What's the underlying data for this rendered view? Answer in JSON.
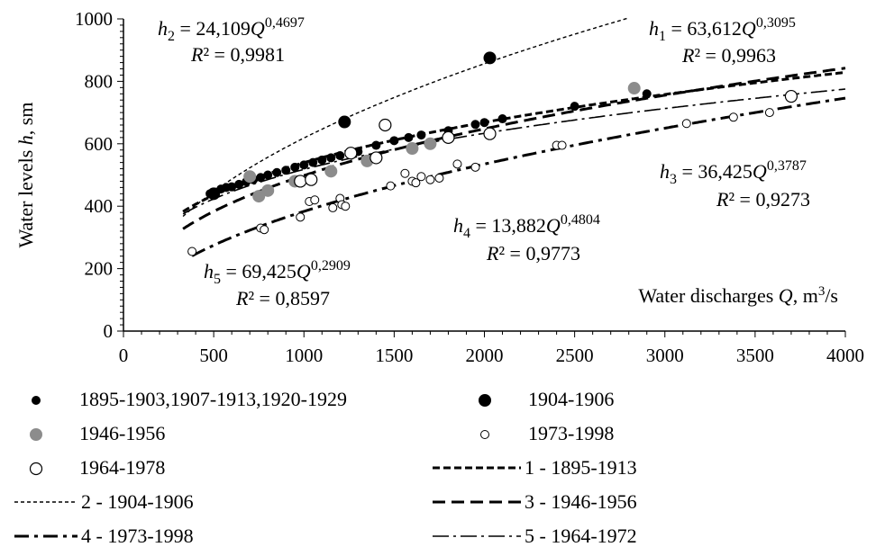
{
  "chart_data": {
    "type": "scatter",
    "xlabel": "Water discharges Q, m³/s",
    "ylabel": "Water levels h, sm",
    "xlim": [
      0,
      4000
    ],
    "ylim": [
      0,
      1000
    ],
    "xticks": [
      0,
      500,
      1000,
      1500,
      2000,
      2500,
      3000,
      3500,
      4000
    ],
    "yticks": [
      0,
      200,
      400,
      600,
      800,
      1000
    ],
    "grid": false,
    "legend_position": "bottom",
    "series": [
      {
        "name": "1895-1903,1907-1913,1920-1929",
        "marker": "filled-small",
        "color": "#000000",
        "points": [
          [
            480,
            440
          ],
          [
            510,
            445
          ],
          [
            540,
            455
          ],
          [
            570,
            460
          ],
          [
            600,
            462
          ],
          [
            640,
            470
          ],
          [
            680,
            478
          ],
          [
            720,
            485
          ],
          [
            760,
            492
          ],
          [
            800,
            500
          ],
          [
            850,
            508
          ],
          [
            900,
            515
          ],
          [
            950,
            525
          ],
          [
            1000,
            532
          ],
          [
            1050,
            540
          ],
          [
            1100,
            548
          ],
          [
            1150,
            555
          ],
          [
            1200,
            562
          ],
          [
            1300,
            575
          ],
          [
            1400,
            595
          ],
          [
            1500,
            610
          ],
          [
            1580,
            620
          ],
          [
            1650,
            628
          ],
          [
            1800,
            642
          ],
          [
            1950,
            662
          ],
          [
            2000,
            668
          ],
          [
            2100,
            680
          ],
          [
            2500,
            720
          ],
          [
            2900,
            760
          ]
        ]
      },
      {
        "name": "1904-1906",
        "marker": "filled-large",
        "color": "#000000",
        "points": [
          [
            500,
            440
          ],
          [
            1225,
            670
          ],
          [
            2030,
            875
          ]
        ]
      },
      {
        "name": "1946-1956",
        "marker": "filled-gray",
        "color": "#8c8c8c",
        "points": [
          [
            700,
            495
          ],
          [
            750,
            432
          ],
          [
            800,
            450
          ],
          [
            950,
            480
          ],
          [
            1150,
            512
          ],
          [
            1350,
            545
          ],
          [
            1600,
            585
          ],
          [
            1700,
            600
          ],
          [
            2830,
            778
          ]
        ]
      },
      {
        "name": "1973-1998",
        "marker": "hollow-small",
        "color": "#000000",
        "points": [
          [
            380,
            255
          ],
          [
            760,
            330
          ],
          [
            780,
            325
          ],
          [
            980,
            365
          ],
          [
            1030,
            415
          ],
          [
            1060,
            420
          ],
          [
            1160,
            395
          ],
          [
            1200,
            425
          ],
          [
            1210,
            405
          ],
          [
            1230,
            400
          ],
          [
            1480,
            465
          ],
          [
            1560,
            505
          ],
          [
            1600,
            480
          ],
          [
            1620,
            475
          ],
          [
            1650,
            495
          ],
          [
            1700,
            485
          ],
          [
            1750,
            490
          ],
          [
            1850,
            535
          ],
          [
            1950,
            525
          ],
          [
            2400,
            595
          ],
          [
            2430,
            595
          ],
          [
            3120,
            665
          ],
          [
            3380,
            685
          ],
          [
            3580,
            700
          ]
        ]
      },
      {
        "name": "1964-1978",
        "marker": "hollow-large",
        "color": "#000000",
        "points": [
          [
            980,
            480
          ],
          [
            1040,
            485
          ],
          [
            1260,
            570
          ],
          [
            1400,
            555
          ],
          [
            1450,
            660
          ],
          [
            1800,
            620
          ],
          [
            2030,
            632
          ],
          [
            3700,
            752
          ]
        ]
      }
    ],
    "curves": [
      {
        "name": "1 - 1895-1913",
        "coef": 63.612,
        "exp": 0.3095,
        "r2": "0,9963",
        "dash": "8,4",
        "width": 3,
        "from": 330,
        "to": 4000
      },
      {
        "name": "2 - 1904-1906",
        "coef": 24.109,
        "exp": 0.4697,
        "r2": "0,9981",
        "dash": "4,3",
        "width": 1.4,
        "from": 330,
        "to": 2790
      },
      {
        "name": "3 - 1946-1956",
        "coef": 36.425,
        "exp": 0.3787,
        "r2": "0,9273",
        "dash": "14,7",
        "width": 3,
        "from": 330,
        "to": 4000
      },
      {
        "name": "4 - 1973-1998",
        "coef": 13.882,
        "exp": 0.4804,
        "r2": "0,9773",
        "dash": "16,6,4,6",
        "width": 3,
        "from": 380,
        "to": 4000
      },
      {
        "name": "5 - 1964-1972",
        "coef": 69.425,
        "exp": 0.2909,
        "r2": "0,8597",
        "dash": "18,5,3,5",
        "width": 1.6,
        "from": 330,
        "to": 4000
      }
    ],
    "equations": [
      {
        "id": "eq2",
        "h": "h",
        "sub": "2",
        "coef": " = 24,109",
        "Q": "Q",
        "exp": "0,4697",
        "r2": "R² = 0,9981"
      },
      {
        "id": "eq1",
        "h": "h",
        "sub": "1",
        "coef": " = 63,612",
        "Q": "Q",
        "exp": "0,3095",
        "r2": "R² = 0,9963"
      },
      {
        "id": "eq3",
        "h": "h",
        "sub": "3",
        "coef": " = 36,425",
        "Q": "Q",
        "exp": "0,3787",
        "r2": "R² = 0,9273"
      },
      {
        "id": "eq4",
        "h": "h",
        "sub": "4",
        "coef": " = 13,882",
        "Q": "Q",
        "exp": "0,4804",
        "r2": "R² = 0,9773"
      },
      {
        "id": "eq5",
        "h": "h",
        "sub": "5",
        "coef": " = 69,425",
        "Q": "Q",
        "exp": "0,2909",
        "r2": "R² = 0,8597"
      }
    ],
    "legend": [
      {
        "label": "1895-1903,1907-1913,1920-1929",
        "kind": "marker",
        "marker": "filled-small"
      },
      {
        "label": "1904-1906",
        "kind": "marker",
        "marker": "filled-large"
      },
      {
        "label": "1946-1956",
        "kind": "marker",
        "marker": "filled-gray"
      },
      {
        "label": "1973-1998",
        "kind": "marker",
        "marker": "hollow-small"
      },
      {
        "label": "1964-1978",
        "kind": "marker",
        "marker": "hollow-large"
      },
      {
        "label": "1 - 1895-1913",
        "kind": "line",
        "dash": "8,4",
        "width": 3
      },
      {
        "label": "2 - 1904-1906",
        "kind": "line",
        "dash": "4,3",
        "width": 1.4
      },
      {
        "label": "3 - 1946-1956",
        "kind": "line",
        "dash": "14,7",
        "width": 3
      },
      {
        "label": "4 - 1973-1998",
        "kind": "line",
        "dash": "16,6,4,6",
        "width": 3
      },
      {
        "label": "5 - 1964-1972",
        "kind": "line",
        "dash": "18,5,3,5",
        "width": 1.6
      }
    ]
  }
}
